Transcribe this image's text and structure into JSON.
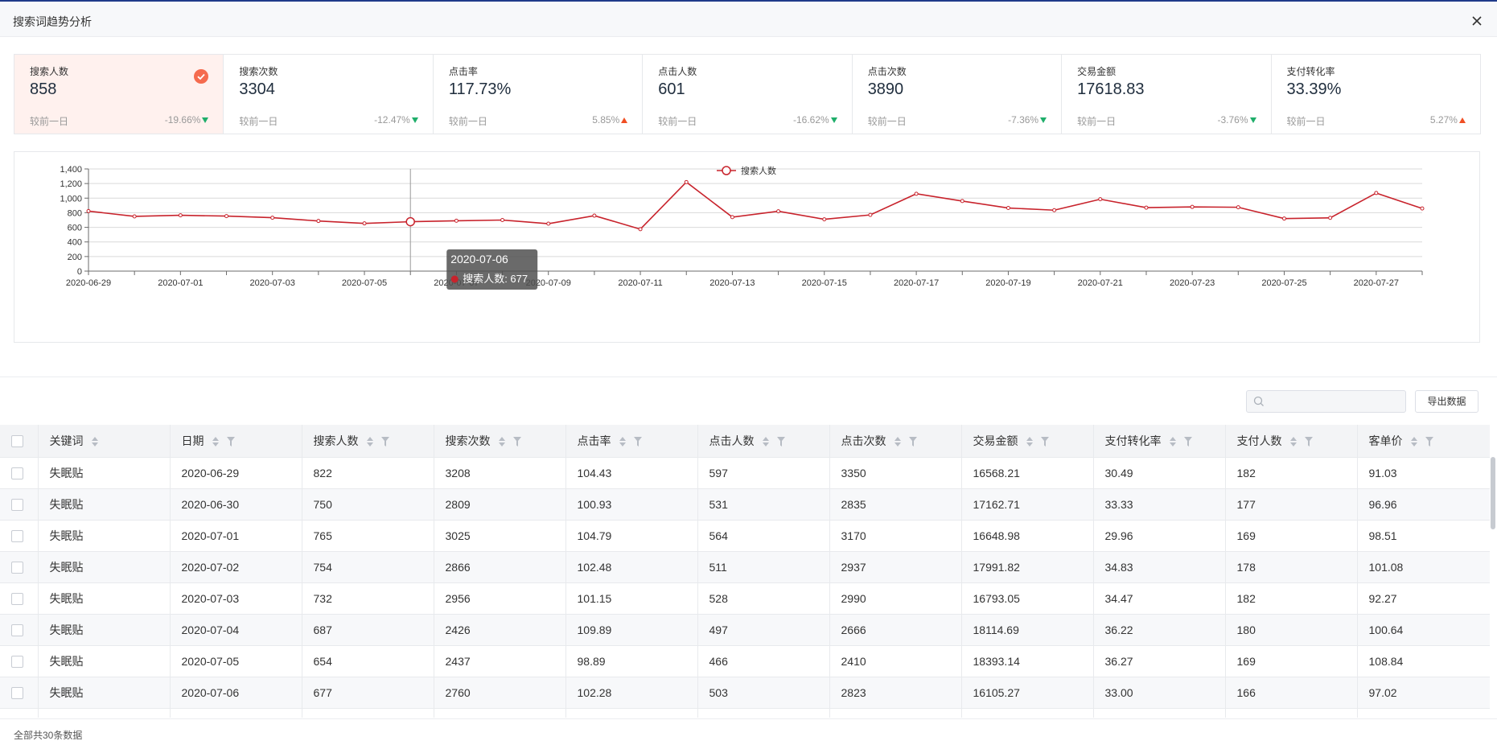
{
  "window": {
    "title": "搜索词趋势分析"
  },
  "metrics": [
    {
      "label": "搜索人数",
      "value": "858",
      "compare": "较前一日",
      "change": "-19.66%",
      "dir": "down",
      "active": true
    },
    {
      "label": "搜索次数",
      "value": "3304",
      "compare": "较前一日",
      "change": "-12.47%",
      "dir": "down"
    },
    {
      "label": "点击率",
      "value": "117.73%",
      "compare": "较前一日",
      "change": "5.85%",
      "dir": "up"
    },
    {
      "label": "点击人数",
      "value": "601",
      "compare": "较前一日",
      "change": "-16.62%",
      "dir": "down"
    },
    {
      "label": "点击次数",
      "value": "3890",
      "compare": "较前一日",
      "change": "-7.36%",
      "dir": "down"
    },
    {
      "label": "交易金额",
      "value": "17618.83",
      "compare": "较前一日",
      "change": "-3.76%",
      "dir": "down"
    },
    {
      "label": "支付转化率",
      "value": "33.39%",
      "compare": "较前一日",
      "change": "5.27%",
      "dir": "up"
    }
  ],
  "chart_data": {
    "type": "line",
    "legend": "搜索人数",
    "legend_position": "top-center",
    "color": "#c8232c",
    "ylim": [
      0,
      1400
    ],
    "yticks": [
      "0",
      "200",
      "400",
      "600",
      "800",
      "1,000",
      "1,200",
      "1,400"
    ],
    "x": [
      "2020-06-29",
      "2020-06-30",
      "2020-07-01",
      "2020-07-02",
      "2020-07-03",
      "2020-07-04",
      "2020-07-05",
      "2020-07-06",
      "2020-07-07",
      "2020-07-08",
      "2020-07-09",
      "2020-07-10",
      "2020-07-11",
      "2020-07-12",
      "2020-07-13",
      "2020-07-14",
      "2020-07-15",
      "2020-07-16",
      "2020-07-17",
      "2020-07-18",
      "2020-07-19",
      "2020-07-20",
      "2020-07-21",
      "2020-07-22",
      "2020-07-23",
      "2020-07-24",
      "2020-07-25",
      "2020-07-26",
      "2020-07-27",
      "2020-07-28"
    ],
    "xticks": [
      "2020-06-29",
      "2020-07-01",
      "2020-07-03",
      "2020-07-05",
      "2020-07-07",
      "2020-07-09",
      "2020-07-11",
      "2020-07-13",
      "2020-07-15",
      "2020-07-17",
      "2020-07-19",
      "2020-07-21",
      "2020-07-23",
      "2020-07-25",
      "2020-07-27"
    ],
    "values": [
      822,
      750,
      765,
      754,
      732,
      687,
      654,
      677,
      690,
      700,
      650,
      760,
      575,
      1220,
      740,
      820,
      710,
      770,
      1060,
      960,
      865,
      835,
      985,
      870,
      880,
      875,
      720,
      730,
      1070,
      858
    ],
    "tooltip": {
      "date": "2020-07-06",
      "series": "搜索人数",
      "value": 677,
      "text": "搜索人数: 677"
    },
    "grid": true
  },
  "toolbar": {
    "search_placeholder": "",
    "export_label": "导出数据"
  },
  "table": {
    "columns": [
      {
        "label": "关键词",
        "sort": true,
        "filter": false
      },
      {
        "label": "日期",
        "sort": true,
        "filter": true
      },
      {
        "label": "搜索人数",
        "sort": true,
        "filter": true
      },
      {
        "label": "搜索次数",
        "sort": true,
        "filter": true
      },
      {
        "label": "点击率",
        "sort": true,
        "filter": true
      },
      {
        "label": "点击人数",
        "sort": true,
        "filter": true
      },
      {
        "label": "点击次数",
        "sort": true,
        "filter": true
      },
      {
        "label": "交易金额",
        "sort": true,
        "filter": true
      },
      {
        "label": "支付转化率",
        "sort": true,
        "filter": true
      },
      {
        "label": "支付人数",
        "sort": true,
        "filter": true
      },
      {
        "label": "客单价",
        "sort": true,
        "filter": true
      }
    ],
    "rows": [
      [
        "失眠贴",
        "2020-06-29",
        "822",
        "3208",
        "104.43",
        "597",
        "3350",
        "16568.21",
        "30.49",
        "182",
        "91.03"
      ],
      [
        "失眠贴",
        "2020-06-30",
        "750",
        "2809",
        "100.93",
        "531",
        "2835",
        "17162.71",
        "33.33",
        "177",
        "96.96"
      ],
      [
        "失眠贴",
        "2020-07-01",
        "765",
        "3025",
        "104.79",
        "564",
        "3170",
        "16648.98",
        "29.96",
        "169",
        "98.51"
      ],
      [
        "失眠贴",
        "2020-07-02",
        "754",
        "2866",
        "102.48",
        "511",
        "2937",
        "17991.82",
        "34.83",
        "178",
        "101.08"
      ],
      [
        "失眠贴",
        "2020-07-03",
        "732",
        "2956",
        "101.15",
        "528",
        "2990",
        "16793.05",
        "34.47",
        "182",
        "92.27"
      ],
      [
        "失眠贴",
        "2020-07-04",
        "687",
        "2426",
        "109.89",
        "497",
        "2666",
        "18114.69",
        "36.22",
        "180",
        "100.64"
      ],
      [
        "失眠贴",
        "2020-07-05",
        "654",
        "2437",
        "98.89",
        "466",
        "2410",
        "18393.14",
        "36.27",
        "169",
        "108.84"
      ],
      [
        "失眠贴",
        "2020-07-06",
        "677",
        "2760",
        "102.28",
        "503",
        "2823",
        "16105.27",
        "33.00",
        "166",
        "97.02"
      ]
    ]
  },
  "footer": {
    "total_text": "全部共30条数据"
  }
}
